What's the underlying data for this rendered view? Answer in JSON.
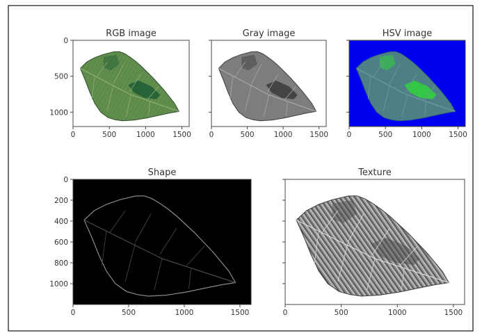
{
  "figure": {
    "panels": [
      {
        "id": "rgb",
        "title": "RGB image",
        "x_ticks": [
          {
            "v": 0,
            "label": "0"
          },
          {
            "v": 500,
            "label": "500"
          },
          {
            "v": 1000,
            "label": "1000"
          },
          {
            "v": 1500,
            "label": "1500"
          }
        ],
        "y_ticks": [
          {
            "v": 0,
            "label": "0"
          },
          {
            "v": 500,
            "label": "500"
          },
          {
            "v": 1000,
            "label": "1000"
          }
        ],
        "xlim": [
          0,
          1600
        ],
        "ylim": [
          0,
          1200
        ],
        "background": "#ffffff",
        "leaf_fill": "#5d8a4a",
        "leaf_stroke": "#2f5130",
        "vein": "#8fae79",
        "accent": "#1f5a34"
      },
      {
        "id": "gray",
        "title": "Gray image",
        "x_ticks": [
          {
            "v": 0,
            "label": "0"
          },
          {
            "v": 500,
            "label": "500"
          },
          {
            "v": 1000,
            "label": "1000"
          },
          {
            "v": 1500,
            "label": "1500"
          }
        ],
        "y_ticks": [
          {
            "v": 0,
            "label": ""
          },
          {
            "v": 500,
            "label": ""
          },
          {
            "v": 1000,
            "label": ""
          }
        ],
        "xlim": [
          0,
          1600
        ],
        "ylim": [
          0,
          1200
        ],
        "background": "#ffffff",
        "leaf_fill": "#7d7d7d",
        "leaf_stroke": "#3d3d3d",
        "vein": "#a8a8a8",
        "accent": "#3a3a3a"
      },
      {
        "id": "hsv",
        "title": "HSV image",
        "x_ticks": [
          {
            "v": 0,
            "label": "0"
          },
          {
            "v": 500,
            "label": "500"
          },
          {
            "v": 1000,
            "label": "1000"
          },
          {
            "v": 1500,
            "label": "1500"
          }
        ],
        "y_ticks": [
          {
            "v": 0,
            "label": ""
          },
          {
            "v": 500,
            "label": ""
          },
          {
            "v": 1000,
            "label": ""
          }
        ],
        "xlim": [
          0,
          1600
        ],
        "ylim": [
          0,
          1200
        ],
        "background": "#0000f0",
        "leaf_fill": "#4f7f86",
        "leaf_stroke": "#2f6a74",
        "vein": "#6f9a9e",
        "accent": "#2fd23a"
      },
      {
        "id": "shape",
        "title": "Shape",
        "x_ticks": [
          {
            "v": 0,
            "label": "0"
          },
          {
            "v": 500,
            "label": "500"
          },
          {
            "v": 1000,
            "label": "1000"
          },
          {
            "v": 1500,
            "label": "1500"
          }
        ],
        "y_ticks": [
          {
            "v": 0,
            "label": "0"
          },
          {
            "v": 200,
            "label": "200"
          },
          {
            "v": 400,
            "label": "400"
          },
          {
            "v": 600,
            "label": "600"
          },
          {
            "v": 800,
            "label": "800"
          },
          {
            "v": 1000,
            "label": "1000"
          }
        ],
        "xlim": [
          0,
          1600
        ],
        "ylim": [
          0,
          1200
        ],
        "background": "#000000",
        "leaf_fill": "none",
        "leaf_stroke": "#8a8a8a",
        "vein": "#4a4a4a",
        "accent": ""
      },
      {
        "id": "texture",
        "title": "Texture",
        "x_ticks": [
          {
            "v": 0,
            "label": "0"
          },
          {
            "v": 500,
            "label": "500"
          },
          {
            "v": 1000,
            "label": "1000"
          },
          {
            "v": 1500,
            "label": "1500"
          }
        ],
        "y_ticks": [
          {
            "v": 0,
            "label": ""
          },
          {
            "v": 200,
            "label": ""
          },
          {
            "v": 400,
            "label": ""
          },
          {
            "v": 600,
            "label": ""
          },
          {
            "v": 800,
            "label": ""
          },
          {
            "v": 1000,
            "label": ""
          }
        ],
        "xlim": [
          0,
          1600
        ],
        "ylim": [
          0,
          1200
        ],
        "background": "#ffffff",
        "leaf_fill": "#9a9a9a",
        "leaf_stroke": "#3a3a3a",
        "vein": "#d8d8d8",
        "accent": "#4a4a4a"
      }
    ]
  }
}
